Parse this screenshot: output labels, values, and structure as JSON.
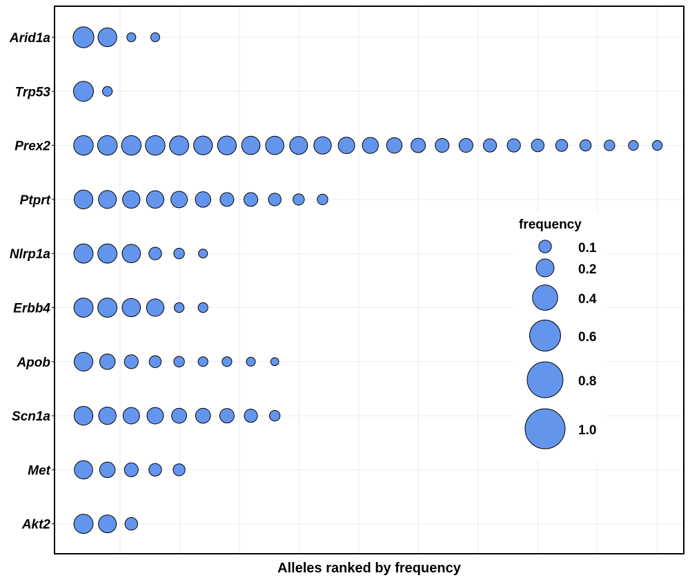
{
  "chart_data": {
    "type": "scatter",
    "title": "",
    "xlabel": "Alleles ranked by frequency",
    "ylabel": "",
    "grid": true,
    "legend_placement": "right",
    "legend": {
      "title": "frequency",
      "values": [
        0.1,
        0.2,
        0.4,
        0.6,
        0.8,
        1.0
      ],
      "labels": [
        "0.1",
        "0.2",
        "0.4",
        "0.6",
        "0.8",
        "1.0"
      ]
    },
    "marker_color": "#6495ED",
    "marker_edge_color": "#000000",
    "genes": [
      {
        "name": "Arid1a",
        "frequencies": [
          0.27,
          0.22,
          0.05,
          0.05
        ]
      },
      {
        "name": "Trp53",
        "frequencies": [
          0.25,
          0.06
        ]
      },
      {
        "name": "Prex2",
        "frequencies": [
          0.24,
          0.24,
          0.24,
          0.24,
          0.23,
          0.22,
          0.22,
          0.21,
          0.21,
          0.2,
          0.19,
          0.17,
          0.16,
          0.15,
          0.13,
          0.12,
          0.12,
          0.11,
          0.11,
          0.1,
          0.09,
          0.08,
          0.07,
          0.06,
          0.06
        ]
      },
      {
        "name": "Ptprt",
        "frequencies": [
          0.22,
          0.2,
          0.19,
          0.19,
          0.17,
          0.15,
          0.12,
          0.12,
          0.1,
          0.08,
          0.07
        ]
      },
      {
        "name": "Nlrp1a",
        "frequencies": [
          0.23,
          0.23,
          0.21,
          0.1,
          0.07,
          0.05
        ]
      },
      {
        "name": "Erbb4",
        "frequencies": [
          0.23,
          0.23,
          0.21,
          0.19,
          0.06,
          0.06
        ]
      },
      {
        "name": "Apob",
        "frequencies": [
          0.22,
          0.15,
          0.12,
          0.09,
          0.07,
          0.06,
          0.06,
          0.05,
          0.04
        ]
      },
      {
        "name": "Scn1a",
        "frequencies": [
          0.22,
          0.19,
          0.17,
          0.17,
          0.14,
          0.14,
          0.13,
          0.11,
          0.07
        ]
      },
      {
        "name": "Met",
        "frequencies": [
          0.21,
          0.15,
          0.12,
          0.1,
          0.09
        ]
      },
      {
        "name": "Akt2",
        "frequencies": [
          0.23,
          0.2,
          0.1
        ]
      }
    ]
  }
}
